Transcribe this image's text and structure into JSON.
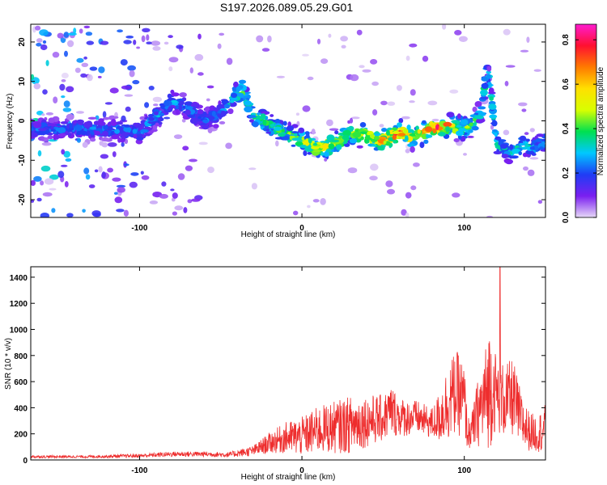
{
  "title": "S197.2026.089.05.29.G01",
  "chart_data": [
    {
      "type": "heatmap",
      "name": "spectrogram",
      "xlabel": "Height of straight line (km)",
      "ylabel": "Frequency (Hz)",
      "xlim": [
        -167,
        150
      ],
      "ylim": [
        -24.5,
        24.5
      ],
      "x_ticks": [
        -100,
        0,
        100
      ],
      "x_tick_labels": [
        "-100",
        "0",
        "100"
      ],
      "y_ticks": [
        -20,
        -10,
        0,
        10,
        20
      ],
      "y_tick_labels": [
        "-20",
        "-10",
        "0",
        "10",
        "20"
      ],
      "colorbar": {
        "label": "Normalized spectral amplitude",
        "range": [
          0,
          0.87
        ],
        "ticks": [
          0,
          0.2,
          0.4,
          0.6,
          0.8
        ],
        "tick_labels": [
          "0.0",
          "0.2",
          "0.4",
          "0.6",
          "0.8"
        ],
        "colormap": [
          "#e6d9f7",
          "#7a1ff0",
          "#1f3df5",
          "#00c8ff",
          "#00e050",
          "#d8ff00",
          "#ffe000",
          "#ff7a00",
          "#ff1030",
          "#ff1cd0"
        ]
      },
      "ridge": {
        "x": [
          -167,
          -120,
          -100,
          -90,
          -80,
          -70,
          -60,
          -50,
          -42,
          -36,
          -32,
          -28,
          -20,
          -10,
          0,
          10,
          20,
          30,
          40,
          50,
          60,
          70,
          80,
          90,
          100,
          107,
          111,
          114,
          120,
          128,
          136,
          143,
          150
        ],
        "freq": [
          -2,
          -2,
          -3,
          1,
          5,
          3,
          0,
          2,
          6,
          8,
          3,
          1,
          -1,
          -3,
          -5,
          -7,
          -6,
          -3,
          -4,
          -5,
          -3,
          -4,
          -2,
          -1,
          -2,
          0,
          3,
          15,
          -6,
          -8,
          -6,
          -7,
          -5
        ],
        "amplitude": [
          0.25,
          0.28,
          0.28,
          0.32,
          0.3,
          0.28,
          0.26,
          0.3,
          0.4,
          0.55,
          0.42,
          0.5,
          0.45,
          0.48,
          0.55,
          0.65,
          0.6,
          0.5,
          0.68,
          0.75,
          0.78,
          0.7,
          0.85,
          0.72,
          0.5,
          0.45,
          0.4,
          0.35,
          0.4,
          0.35,
          0.38,
          0.32,
          0.3
        ]
      }
    },
    {
      "type": "line",
      "name": "snr",
      "xlabel": "Height of straight line (km)",
      "ylabel": "SNR (10 * v/v)",
      "xlim": [
        -167,
        150
      ],
      "ylim": [
        0,
        1480
      ],
      "x_ticks": [
        -100,
        0,
        100
      ],
      "x_tick_labels": [
        "-100",
        "0",
        "100"
      ],
      "y_ticks": [
        0,
        200,
        400,
        600,
        800,
        1000,
        1200,
        1400
      ],
      "y_tick_labels": [
        "0",
        "200",
        "400",
        "600",
        "800",
        "1000",
        "1200",
        "1400"
      ],
      "line_color": "#ee2d2d",
      "envelope": {
        "x": [
          -167,
          -130,
          -100,
          -80,
          -60,
          -45,
          -30,
          -20,
          -10,
          0,
          10,
          20,
          30,
          40,
          50,
          55,
          60,
          65,
          70,
          80,
          85,
          90,
          95,
          100,
          102,
          105,
          108,
          112,
          116,
          118,
          120,
          125,
          130,
          135,
          140,
          145,
          150
        ],
        "mean": [
          25,
          25,
          32,
          45,
          45,
          40,
          70,
          130,
          170,
          180,
          230,
          250,
          270,
          300,
          320,
          380,
          330,
          320,
          330,
          280,
          330,
          450,
          520,
          450,
          200,
          230,
          350,
          450,
          580,
          550,
          500,
          450,
          480,
          300,
          220,
          200,
          250
        ],
        "amplitude": [
          10,
          10,
          15,
          20,
          20,
          20,
          40,
          80,
          120,
          150,
          180,
          200,
          220,
          200,
          180,
          200,
          150,
          140,
          130,
          120,
          200,
          300,
          320,
          300,
          120,
          150,
          250,
          350,
          500,
          350,
          300,
          280,
          300,
          220,
          150,
          140,
          180
        ],
        "max_peak": {
          "x": 122,
          "y": 1480
        }
      }
    }
  ]
}
